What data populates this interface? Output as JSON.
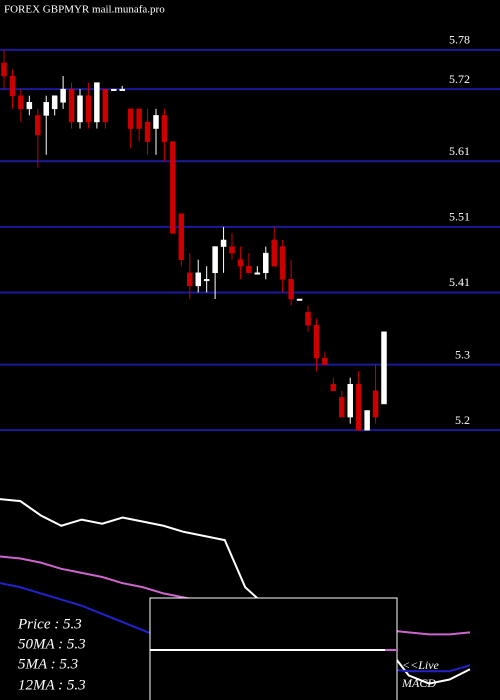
{
  "chart_data": [
    {
      "type": "candlestick",
      "title": "FOREX  GBPMYR mail.munafa.pro",
      "ylim": [
        5.185,
        5.856
      ],
      "yticks": [
        5.78,
        5.72,
        5.61,
        5.51,
        5.41,
        5.3,
        5.2
      ],
      "grid": true,
      "grid_color": "#1a1a9a",
      "up_color": "#ffffff",
      "down_color": "#cc0000",
      "open": [
        5.76,
        5.74,
        5.71,
        5.69,
        5.68,
        5.68,
        5.69,
        5.7,
        5.72,
        5.67,
        5.71,
        5.67,
        5.72,
        5.72,
        5.72,
        5.69,
        5.69,
        5.67,
        5.66,
        5.68,
        5.64,
        5.53,
        5.44,
        5.42,
        5.43,
        5.44,
        5.48,
        5.48,
        5.46,
        5.45,
        5.44,
        5.44,
        5.49,
        5.48,
        5.43,
        5.4,
        5.38,
        5.36,
        5.31,
        5.27,
        5.25,
        5.22,
        5.27,
        5.2,
        5.26,
        5.24
      ],
      "high": [
        5.78,
        5.75,
        5.72,
        5.71,
        5.69,
        5.71,
        5.71,
        5.74,
        5.73,
        5.72,
        5.73,
        5.73,
        5.72,
        5.72,
        5.725,
        5.69,
        5.69,
        5.69,
        5.69,
        5.69,
        5.64,
        5.53,
        5.47,
        5.46,
        5.45,
        5.48,
        5.51,
        5.5,
        5.48,
        5.47,
        5.45,
        5.48,
        5.51,
        5.49,
        5.46,
        5.4,
        5.39,
        5.37,
        5.32,
        5.28,
        5.26,
        5.28,
        5.29,
        5.23,
        5.3,
        5.35
      ],
      "low": [
        5.72,
        5.69,
        5.67,
        5.68,
        5.6,
        5.62,
        5.68,
        5.69,
        5.66,
        5.66,
        5.66,
        5.66,
        5.66,
        5.72,
        5.72,
        5.63,
        5.64,
        5.62,
        5.62,
        5.61,
        5.5,
        5.45,
        5.4,
        5.41,
        5.41,
        5.4,
        5.44,
        5.46,
        5.43,
        5.44,
        5.44,
        5.43,
        5.45,
        5.41,
        5.39,
        5.4,
        5.35,
        5.29,
        5.3,
        5.26,
        5.22,
        5.21,
        5.2,
        5.2,
        5.21,
        5.24
      ],
      "close": [
        5.74,
        5.71,
        5.69,
        5.7,
        5.65,
        5.7,
        5.71,
        5.72,
        5.67,
        5.71,
        5.67,
        5.73,
        5.67,
        5.72,
        5.72,
        5.66,
        5.66,
        5.64,
        5.68,
        5.64,
        5.5,
        5.46,
        5.42,
        5.44,
        5.43,
        5.48,
        5.49,
        5.47,
        5.45,
        5.44,
        5.44,
        5.47,
        5.45,
        5.43,
        5.4,
        5.4,
        5.36,
        5.31,
        5.3,
        5.26,
        5.22,
        5.27,
        5.2,
        5.23,
        5.22,
        5.35
      ]
    },
    {
      "type": "line",
      "ylim": [
        0,
        100
      ],
      "info": [
        "Price   : 5.3",
        "50MA : 5.3",
        "5MA : 5.3",
        "12MA : 5.3"
      ],
      "annotation": [
        "<<Live",
        "MACD"
      ],
      "series": [
        {
          "color": "#ffffff",
          "values": [
            98,
            97,
            90,
            85,
            88,
            86,
            89,
            87,
            85,
            82,
            80,
            78,
            55,
            46,
            40,
            40,
            37,
            37,
            33,
            25,
            12,
            8,
            10,
            15
          ]
        },
        {
          "color": "#cc66cc",
          "values": [
            70,
            69,
            67,
            64,
            62,
            60,
            57,
            55,
            52,
            50,
            48,
            45,
            43,
            42,
            41,
            40,
            38,
            37,
            35,
            34,
            33,
            32,
            32,
            33
          ]
        },
        {
          "color": "#2222cc",
          "values": [
            57,
            55,
            52,
            49,
            46,
            42,
            38,
            34,
            30,
            26,
            23,
            21,
            20,
            19,
            18,
            18,
            17,
            16,
            16,
            15,
            14,
            14,
            14,
            17
          ]
        }
      ]
    }
  ]
}
